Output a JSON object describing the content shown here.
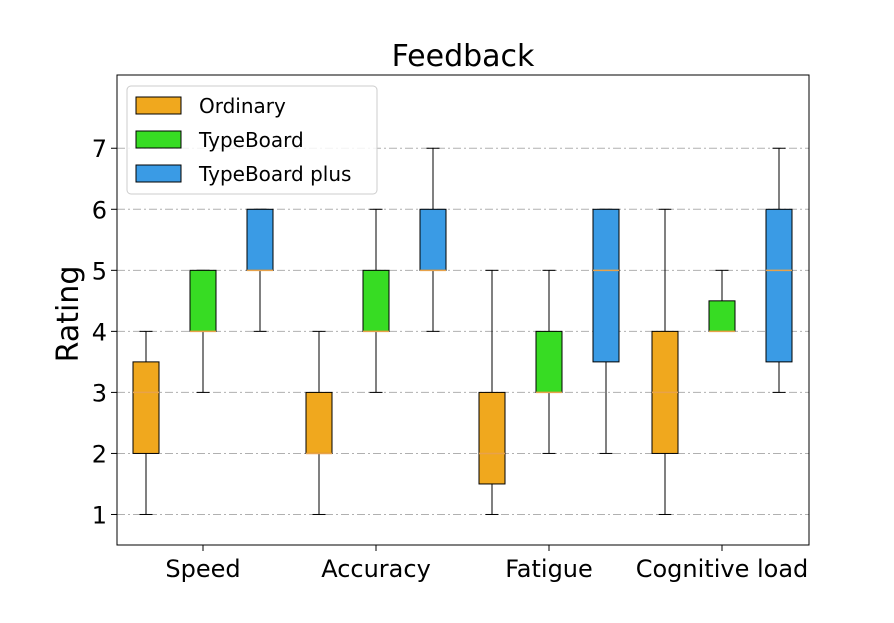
{
  "chart_data": {
    "type": "box",
    "title": "Feedback",
    "ylabel": "Rating",
    "xlabel": "",
    "ylim": [
      0.5,
      8.2
    ],
    "yticks": [
      1,
      2,
      3,
      4,
      5,
      6,
      7
    ],
    "grid": "horizontal dash-dot",
    "legend_position": "top-left",
    "categories": [
      "Speed",
      "Accuracy",
      "Fatigue",
      "Cognitive load"
    ],
    "series": [
      {
        "name": "Ordinary",
        "color": "#f0a81e",
        "boxes": [
          {
            "whislo": 1,
            "q1": 2,
            "med": 3,
            "q3": 3.5,
            "whishi": 4
          },
          {
            "whislo": 1,
            "q1": 2,
            "med": 2,
            "q3": 3,
            "whishi": 4
          },
          {
            "whislo": 1,
            "q1": 1.5,
            "med": 2,
            "q3": 3,
            "whishi": 5
          },
          {
            "whislo": 1,
            "q1": 2,
            "med": 3,
            "q3": 4,
            "whishi": 6
          }
        ]
      },
      {
        "name": "TypeBoard",
        "color": "#37dc23",
        "boxes": [
          {
            "whislo": 3,
            "q1": 4,
            "med": 4,
            "q3": 5,
            "whishi": 5
          },
          {
            "whislo": 3,
            "q1": 4,
            "med": 4,
            "q3": 5,
            "whishi": 6
          },
          {
            "whislo": 2,
            "q1": 3,
            "med": 3,
            "q3": 4,
            "whishi": 5
          },
          {
            "whislo": 4,
            "q1": 4,
            "med": 4,
            "q3": 4.5,
            "whishi": 5
          }
        ]
      },
      {
        "name": "TypeBoard plus",
        "color": "#3a9be5",
        "boxes": [
          {
            "whislo": 4,
            "q1": 5,
            "med": 5,
            "q3": 6,
            "whishi": 6
          },
          {
            "whislo": 4,
            "q1": 5,
            "med": 5,
            "q3": 6,
            "whishi": 7
          },
          {
            "whislo": 2,
            "q1": 3.5,
            "med": 5,
            "q3": 6,
            "whishi": 6
          },
          {
            "whislo": 3,
            "q1": 3.5,
            "med": 5,
            "q3": 6,
            "whishi": 7
          }
        ]
      }
    ],
    "median_color": "#e8a24a"
  }
}
